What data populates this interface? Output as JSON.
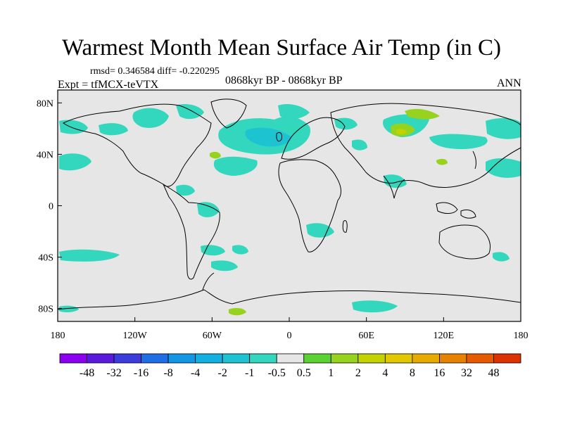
{
  "title": "Warmest Month Mean Surface Air Temp (in C)",
  "stats_text": "rmsd= 0.346584  diff= -0.220295",
  "experiment": "Expt = tfMCX-teVTX",
  "period": "0868kyr BP - 0868kyr BP",
  "season": "ANN",
  "map": {
    "projection": "equirectangular",
    "lon_range": [
      -180,
      180
    ],
    "lat_range": [
      -90,
      90
    ],
    "background_color": "#e6e6e6",
    "x_ticks": [
      "180",
      "120W",
      "60W",
      "0",
      "60E",
      "120E",
      "180"
    ],
    "y_ticks": [
      "80N",
      "40N",
      "0",
      "40S",
      "80S"
    ]
  },
  "colorbar": {
    "labels": [
      "-48",
      "-32",
      "-16",
      "-8",
      "-4",
      "-2",
      "-1",
      "-0.5",
      "0.5",
      "1",
      "2",
      "4",
      "8",
      "16",
      "32",
      "48"
    ],
    "colors": [
      "#8c00f0",
      "#5a1adc",
      "#3c3cdc",
      "#1e6ee6",
      "#1496e6",
      "#14afe1",
      "#1ec3d2",
      "#32d7be",
      "#e6e6e6",
      "#5ad232",
      "#96d21e",
      "#c3d200",
      "#e1c800",
      "#e6aa00",
      "#e68200",
      "#e65a00",
      "#dc3200"
    ]
  }
}
